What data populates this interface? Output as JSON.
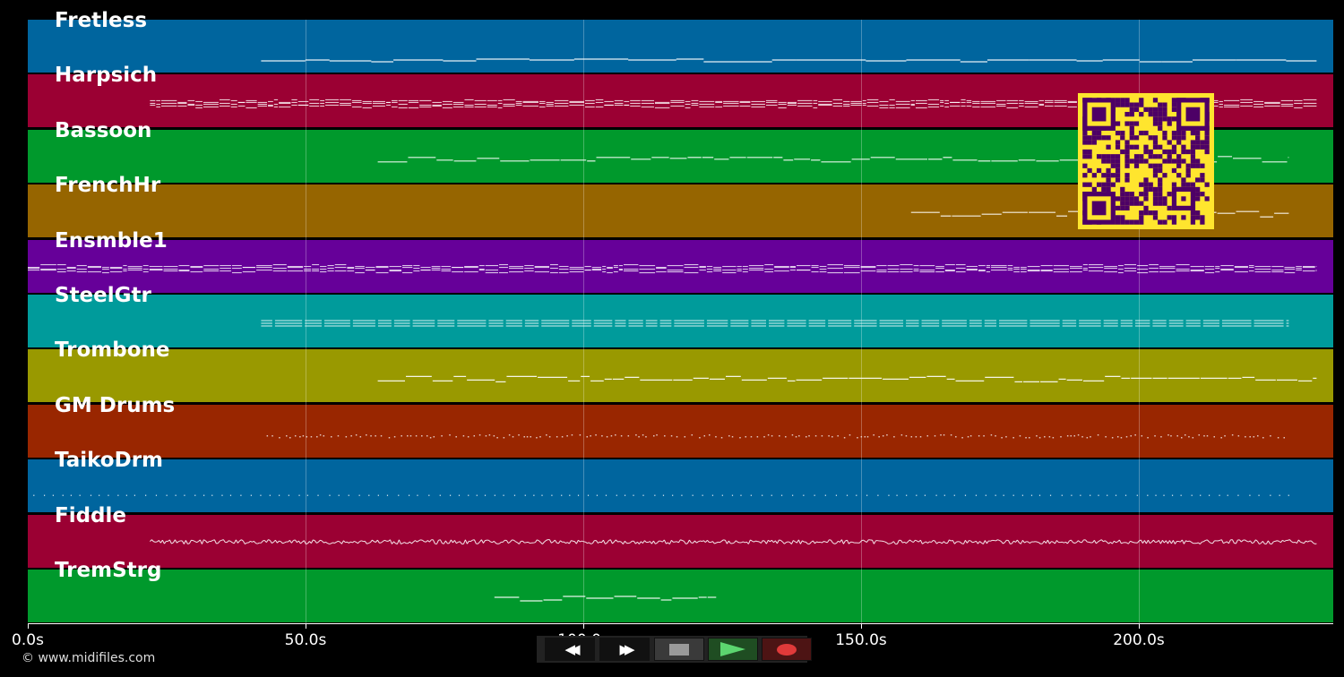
{
  "footer": {
    "copyright": "© www.midifiles.com"
  },
  "timeline": {
    "duration_s": 235,
    "tick_labels": [
      "0.0s",
      "50.0s",
      "100.0s",
      "150.0s",
      "200.0s"
    ],
    "tick_values_s": [
      0,
      50,
      100,
      150,
      200
    ]
  },
  "tracks": [
    {
      "name": "Fretless",
      "color": "#00659e",
      "note_start_s": 42,
      "note_end_s": 232,
      "style": "sparse-line"
    },
    {
      "name": "Harpsich",
      "color": "#9b0033",
      "note_start_s": 22,
      "note_end_s": 232,
      "style": "dense"
    },
    {
      "name": "Bassoon",
      "color": "#00992c",
      "note_start_s": 63,
      "note_end_s": 227,
      "style": "line"
    },
    {
      "name": "FrenchHr",
      "color": "#966500",
      "note_start_s": 159,
      "note_end_s": 227,
      "style": "line"
    },
    {
      "name": "Ensmble1",
      "color": "#660099",
      "note_start_s": 0,
      "note_end_s": 232,
      "style": "dense"
    },
    {
      "name": "SteelGtr",
      "color": "#009b9b",
      "note_start_s": 42,
      "note_end_s": 227,
      "style": "blocks"
    },
    {
      "name": "Trombone",
      "color": "#999900",
      "note_start_s": 63,
      "note_end_s": 232,
      "style": "line"
    },
    {
      "name": "GM Drums",
      "color": "#992600",
      "note_start_s": 43,
      "note_end_s": 227,
      "style": "dots"
    },
    {
      "name": "TaikoDrm",
      "color": "#00659e",
      "note_start_s": 1,
      "note_end_s": 227,
      "style": "sparse-dots"
    },
    {
      "name": "Fiddle",
      "color": "#9b0033",
      "note_start_s": 22,
      "note_end_s": 232,
      "style": "squiggle"
    },
    {
      "name": "TremStrg",
      "color": "#00992c",
      "note_start_s": 84,
      "note_end_s": 124,
      "style": "line"
    }
  ],
  "transport": {
    "buttons": [
      {
        "name": "rewind-button",
        "icon": "rewind-icon",
        "glyph": "◀◀"
      },
      {
        "name": "fast-forward-button",
        "icon": "fast-forward-icon",
        "glyph": "▶▶"
      },
      {
        "name": "stop-button",
        "icon": "stop-icon",
        "color": "#9a9a9a"
      },
      {
        "name": "play-button",
        "icon": "play-icon",
        "color": "#5cd66f"
      },
      {
        "name": "record-button",
        "icon": "record-icon",
        "color": "#e03a3a"
      }
    ]
  },
  "qr_code": {
    "icon": "qr-code-icon",
    "fg": "#4d0066",
    "bg": "#ffe52e"
  }
}
